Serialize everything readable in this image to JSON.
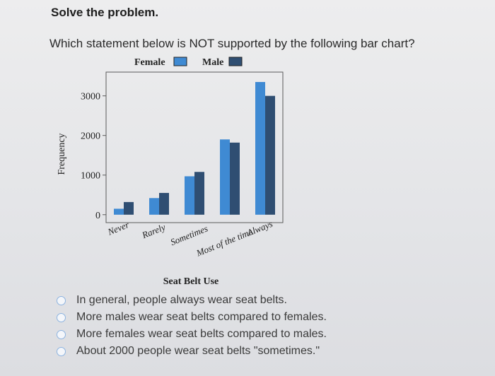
{
  "heading": "Solve the problem.",
  "question": "Which statement below is NOT supported by the following bar chart?",
  "colors": {
    "female": "#3f8ad3",
    "male": "#2f4e72",
    "frame": "#5a5a5a"
  },
  "chart_data": {
    "type": "bar",
    "categories": [
      "Never",
      "Rarely",
      "Sometimes",
      "Most of the time",
      "Always"
    ],
    "series": [
      {
        "name": "Female",
        "values": [
          150,
          420,
          970,
          1900,
          3350
        ]
      },
      {
        "name": "Male",
        "values": [
          320,
          550,
          1080,
          1820,
          3000
        ]
      }
    ],
    "xlabel": "Seat Belt Use",
    "ylabel": "Frequency",
    "ylim": [
      -200,
      3600
    ],
    "yticks": [
      "0",
      "1000",
      "2000",
      "3000"
    ],
    "legend_position": "top",
    "grid": false
  },
  "options": [
    {
      "label": "In general, people always wear seat belts."
    },
    {
      "label": "More males wear seat belts compared to females."
    },
    {
      "label": "More females wear seat belts compared to males."
    },
    {
      "label": "About 2000 people wear seat belts \"sometimes.\""
    }
  ]
}
